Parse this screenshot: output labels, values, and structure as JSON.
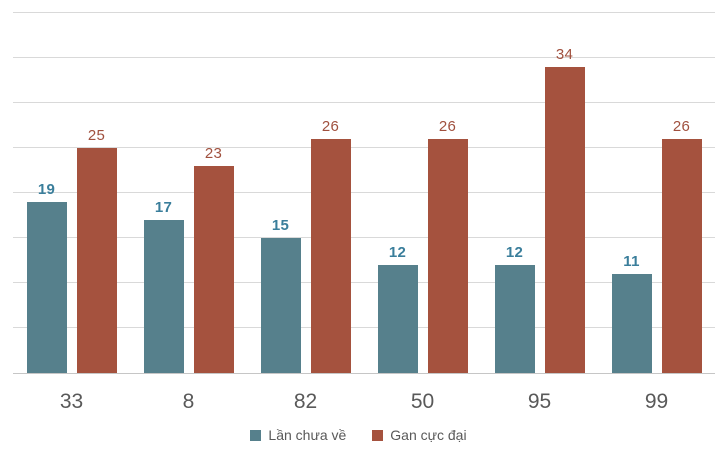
{
  "chart": {
    "background": "#ffffff",
    "gridline_color": "#d9d9d9",
    "axis_line_color": "#c6c6c6",
    "axis_label_color": "#595959"
  },
  "chart_data": {
    "type": "bar",
    "title": "",
    "xlabel": "",
    "ylabel": "",
    "categories": [
      "33",
      "8",
      "82",
      "50",
      "95",
      "99"
    ],
    "series": [
      {
        "name": "Lần chưa về",
        "values": [
          19,
          17,
          15,
          12,
          12,
          11
        ],
        "color": "#56808C",
        "label_color": "#3A7E9B"
      },
      {
        "name": "Gan cực đại",
        "values": [
          25,
          23,
          26,
          26,
          34,
          26
        ],
        "color": "#A5523E",
        "label_color": "#A0503E"
      }
    ],
    "ylim": [
      0,
      40
    ],
    "gridline_step": 5,
    "grid": true,
    "data_labels": true,
    "legend_position": "bottom"
  }
}
